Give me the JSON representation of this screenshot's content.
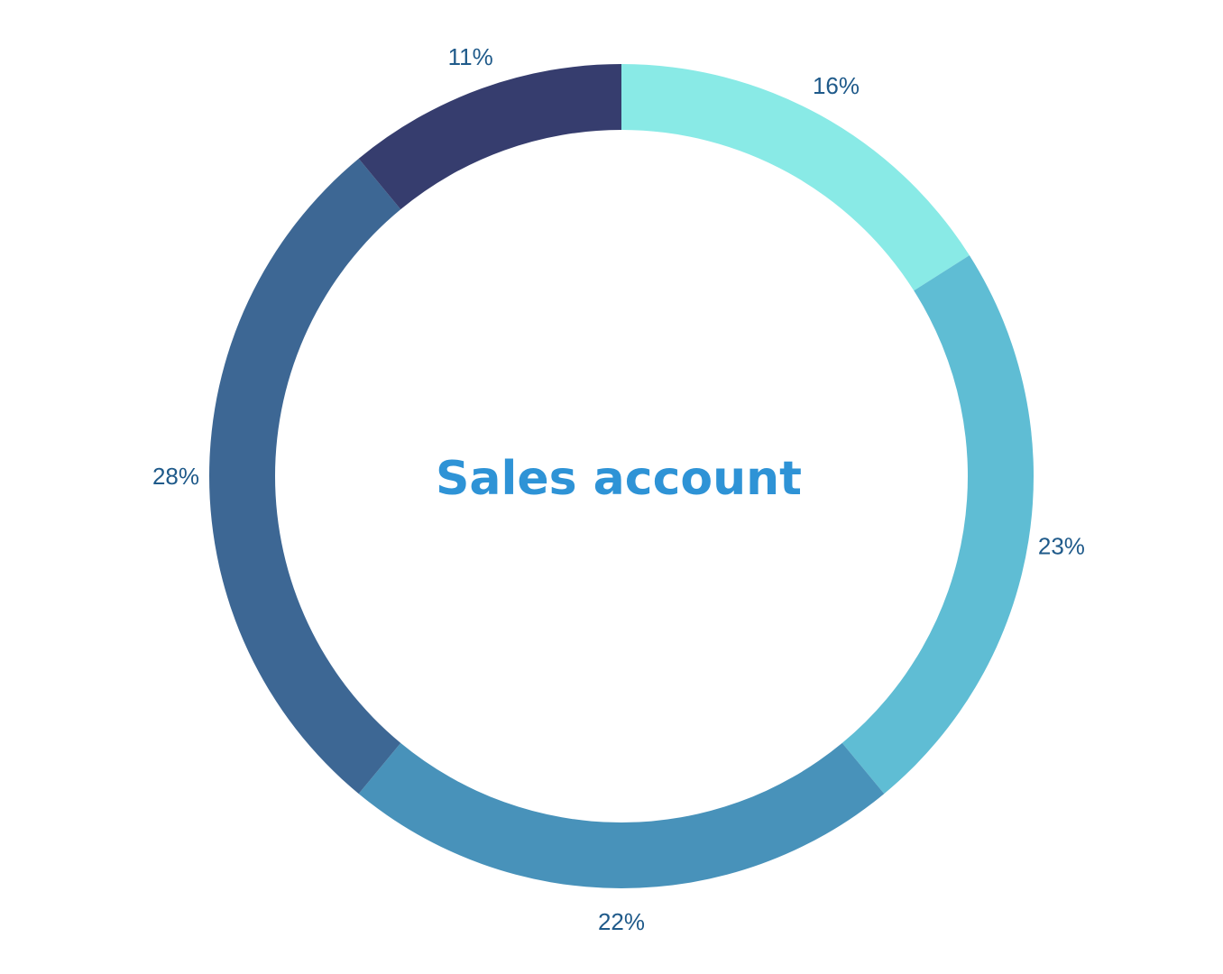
{
  "chart_data": {
    "type": "pie",
    "variant": "donut",
    "center_label": "Sales account",
    "slices": [
      {
        "value": 16,
        "label": "16%",
        "color": "#89EAE6"
      },
      {
        "value": 23,
        "label": "23%",
        "color": "#5FBDD4"
      },
      {
        "value": 22,
        "label": "22%",
        "color": "#4892BA"
      },
      {
        "value": 28,
        "label": "28%",
        "color": "#3D6794"
      },
      {
        "value": 11,
        "label": "11%",
        "color": "#363D6E"
      }
    ],
    "start_angle": "top",
    "direction": "clockwise",
    "legend": "none"
  }
}
